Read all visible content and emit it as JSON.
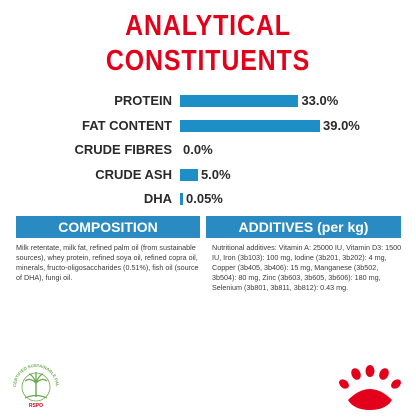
{
  "header": {
    "title_line1": "ANALYTICAL",
    "title_line2": "CONSTITUENTS"
  },
  "chart_data": {
    "type": "bar",
    "orientation": "horizontal",
    "title": "ANALYTICAL CONSTITUENTS",
    "categories": [
      "PROTEIN",
      "FAT CONTENT",
      "CRUDE FIBRES",
      "CRUDE ASH",
      "DHA"
    ],
    "values": [
      33.0,
      39.0,
      0.0,
      5.0,
      0.05
    ],
    "value_labels": [
      "33.0%",
      "39.0%",
      "0.0%",
      "5.0%",
      "0.05%"
    ],
    "unit": "%",
    "xlim": [
      0,
      39.0
    ],
    "grid": false,
    "bar_color": "#1e8fc6"
  },
  "composition": {
    "heading": "COMPOSITION",
    "text": "Milk retentate, milk fat, refined palm oil (from sustainable sources), whey protein, refined soya oil, refined copra oil, minerals, fructo-oligosaccharides (0.51%), fish oil (source of DHA), fungi oil."
  },
  "additives": {
    "heading": "ADDITIVES (per kg)",
    "text": "Nutritional additives: Vitamin A: 25000 IU, Vitamin D3: 1500 IU, Iron (3b103): 100 mg, Iodine (3b201, 3b202): 4 mg, Copper (3b405, 3b406): 15 mg, Manganese (3b502, 3b504): 80 mg, Zinc (3b603, 3b605, 3b606): 180 mg, Selenium (3b801, 3b811, 3b812): 0.43 mg."
  },
  "logos": {
    "rspo_text": "CERTIFIED SUSTAINABLE PALM OIL",
    "rspo_mark": "RSPO",
    "rspo_color": "#6aa84f",
    "brand_color": "#e2001a"
  },
  "colors": {
    "title": "#e2001a",
    "section_header": "#2a8bc3",
    "bar": "#1e8fc6"
  }
}
